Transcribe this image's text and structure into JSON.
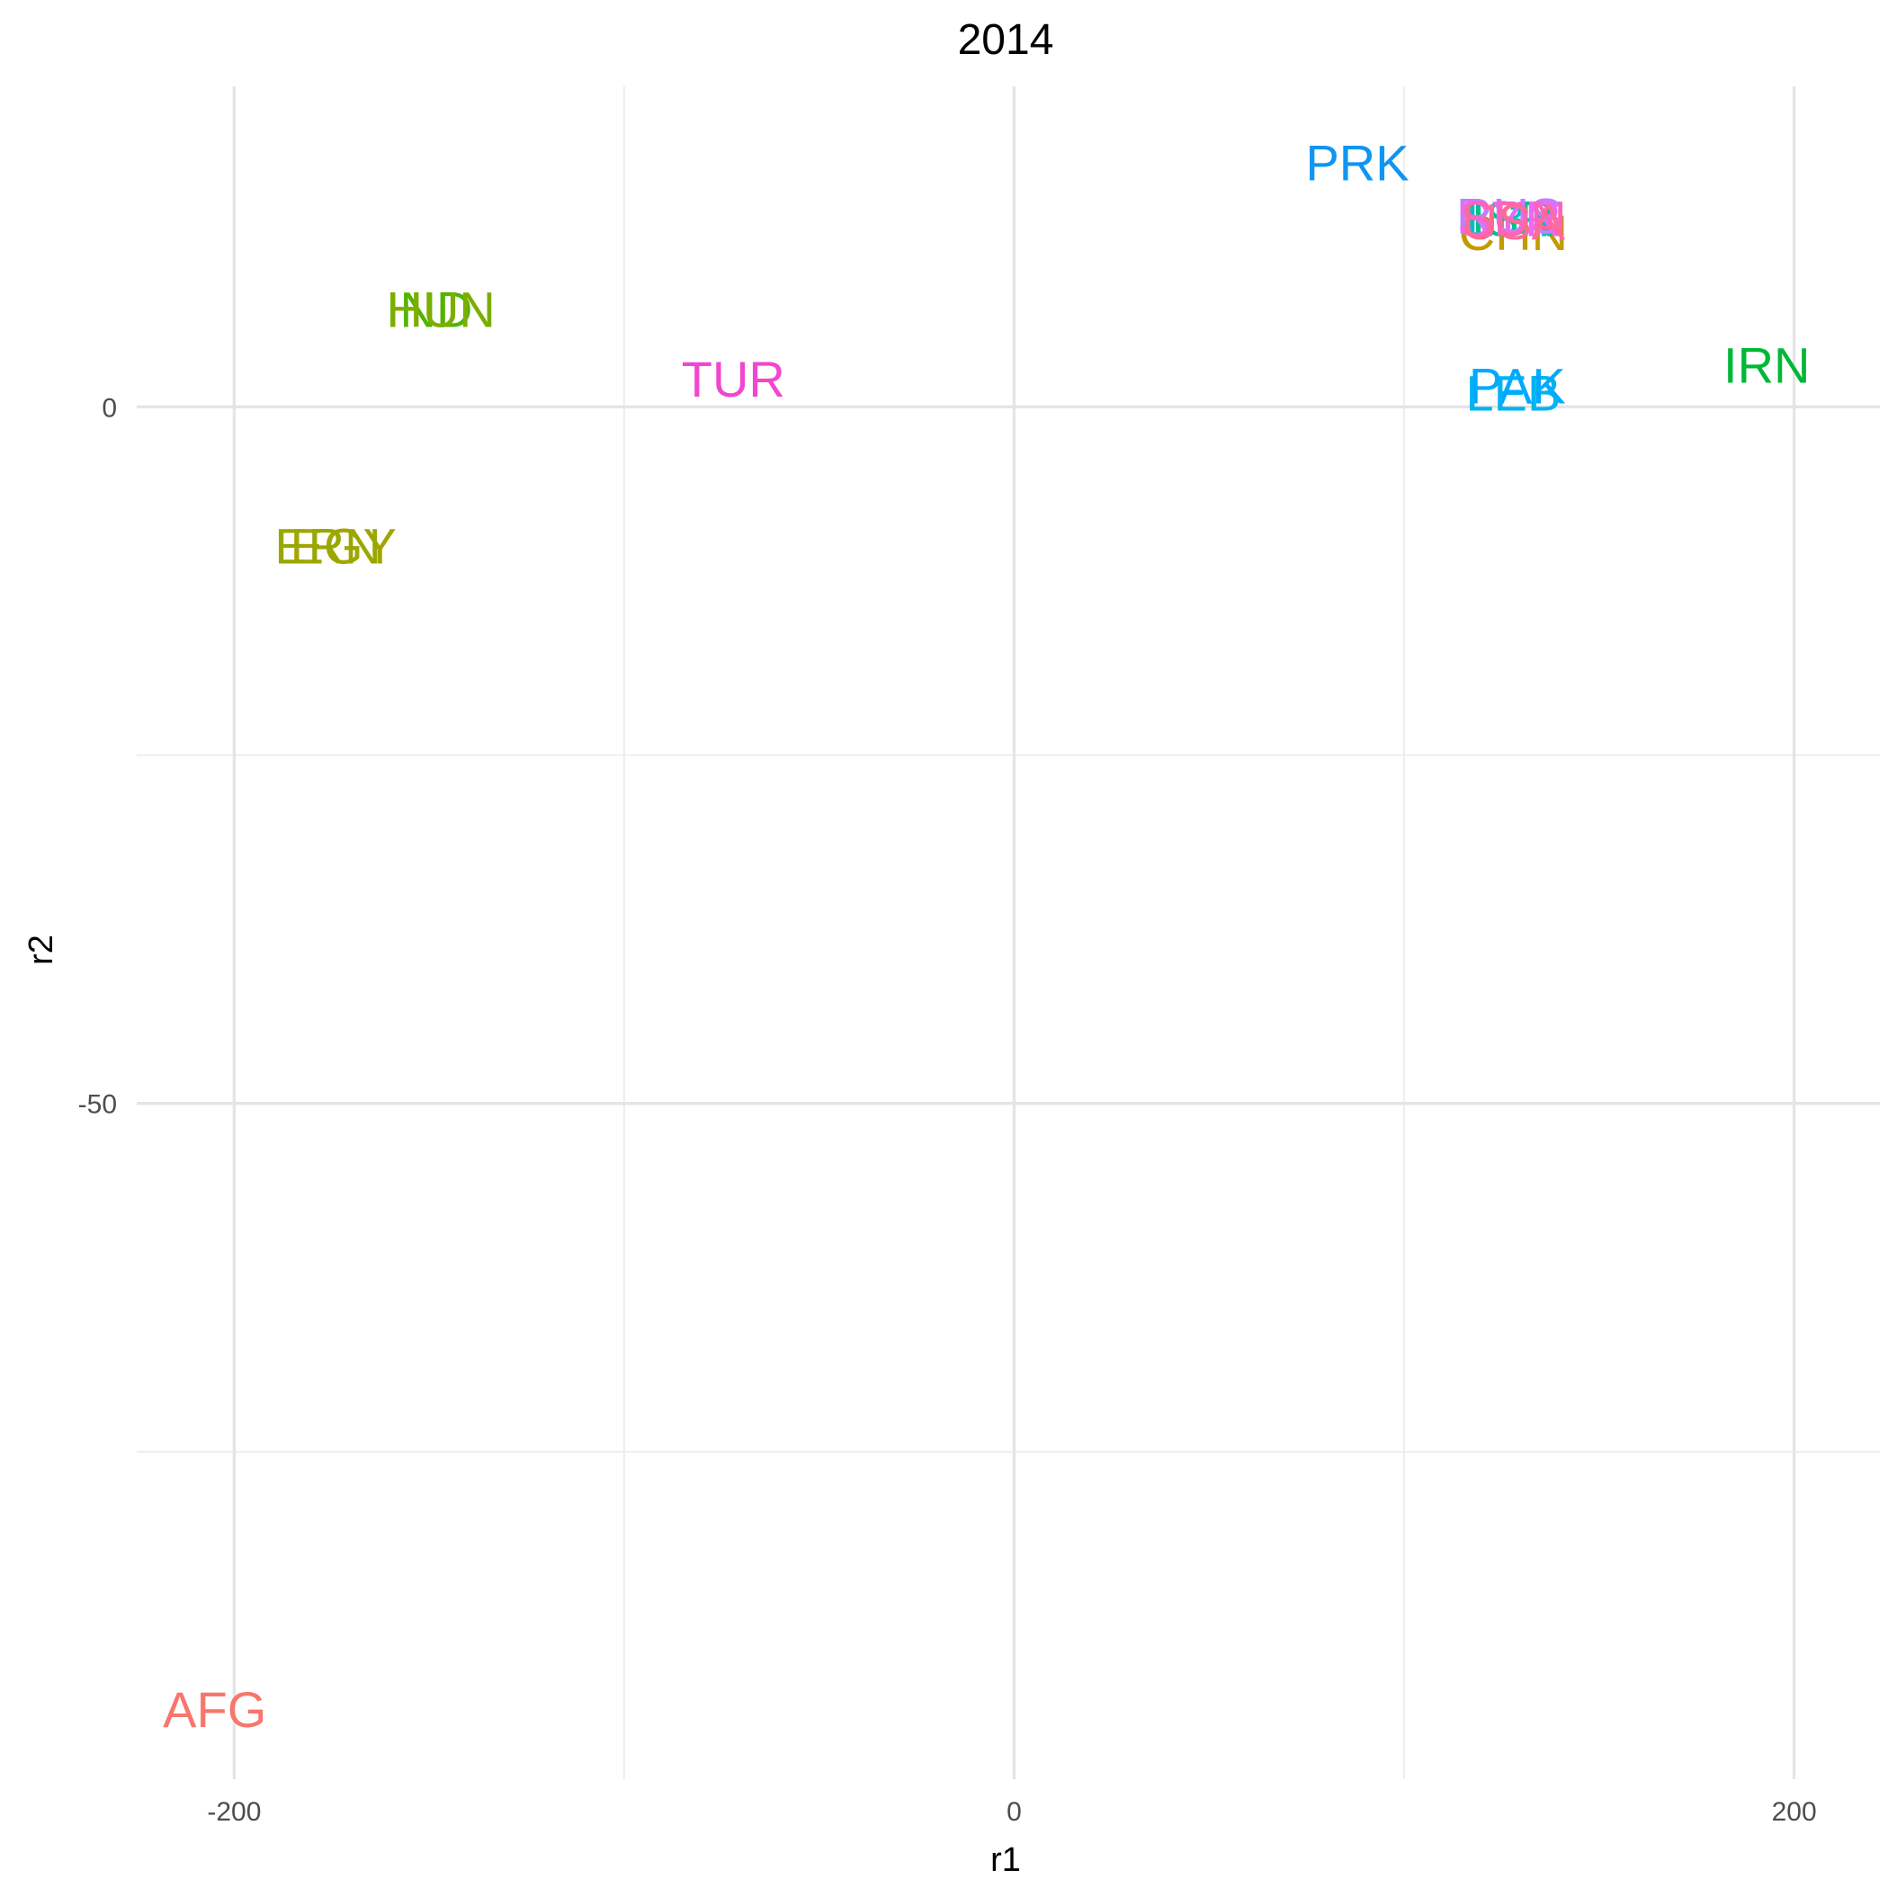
{
  "chart_data": {
    "type": "scatter",
    "title": "2014",
    "xlabel": "r1",
    "ylabel": "r2",
    "xlim": [
      -225,
      222
    ],
    "ylim": [
      -98.5,
      23
    ],
    "x_ticks": [
      -200,
      0,
      200
    ],
    "x_tick_labels": [
      "-200",
      "0",
      "200"
    ],
    "x_minor": [
      -100,
      100
    ],
    "y_ticks": [
      -50,
      0
    ],
    "y_tick_labels": [
      "-50",
      "0"
    ],
    "y_minor": [
      -75,
      -25
    ],
    "grid": true,
    "legend": "none",
    "points": [
      {
        "label": "AFG",
        "x": -205,
        "y": -93.5,
        "color": "#F8766D"
      },
      {
        "label": "CHN",
        "x": 128,
        "y": 12.5,
        "color": "#C49A00"
      },
      {
        "label": "EGY",
        "x": -172,
        "y": -10,
        "color": "#A3A500"
      },
      {
        "label": "ERN",
        "x": -176,
        "y": -10,
        "color": "#99A800"
      },
      {
        "label": "IND",
        "x": -150,
        "y": 7,
        "color": "#53B400"
      },
      {
        "label": "HUN",
        "x": -147,
        "y": 7,
        "color": "#7CAE00"
      },
      {
        "label": "IRN",
        "x": 193,
        "y": 3,
        "color": "#00B836"
      },
      {
        "label": "ISR",
        "x": 128,
        "y": 13.5,
        "color": "#00C08B"
      },
      {
        "label": "LBY",
        "x": 128,
        "y": 13.5,
        "color": "#00BFC4"
      },
      {
        "label": "LEB",
        "x": 128,
        "y": 1,
        "color": "#00B4F0"
      },
      {
        "label": "PAK",
        "x": 129,
        "y": 1.5,
        "color": "#00A9FF"
      },
      {
        "label": "PRK",
        "x": 88,
        "y": 17.5,
        "color": "#0f95f3"
      },
      {
        "label": "RUS",
        "x": 127,
        "y": 13.7,
        "color": "#C77CFF"
      },
      {
        "label": "SYR",
        "x": 127,
        "y": 13.5,
        "color": "#E76BF3"
      },
      {
        "label": "SDN",
        "x": 128,
        "y": 13.5,
        "color": "#FF62BC"
      },
      {
        "label": "TUR",
        "x": -72,
        "y": 2,
        "color": "#F046D0"
      },
      {
        "label": "USA",
        "x": 128,
        "y": 13.3,
        "color": "#FF6A98"
      }
    ]
  }
}
